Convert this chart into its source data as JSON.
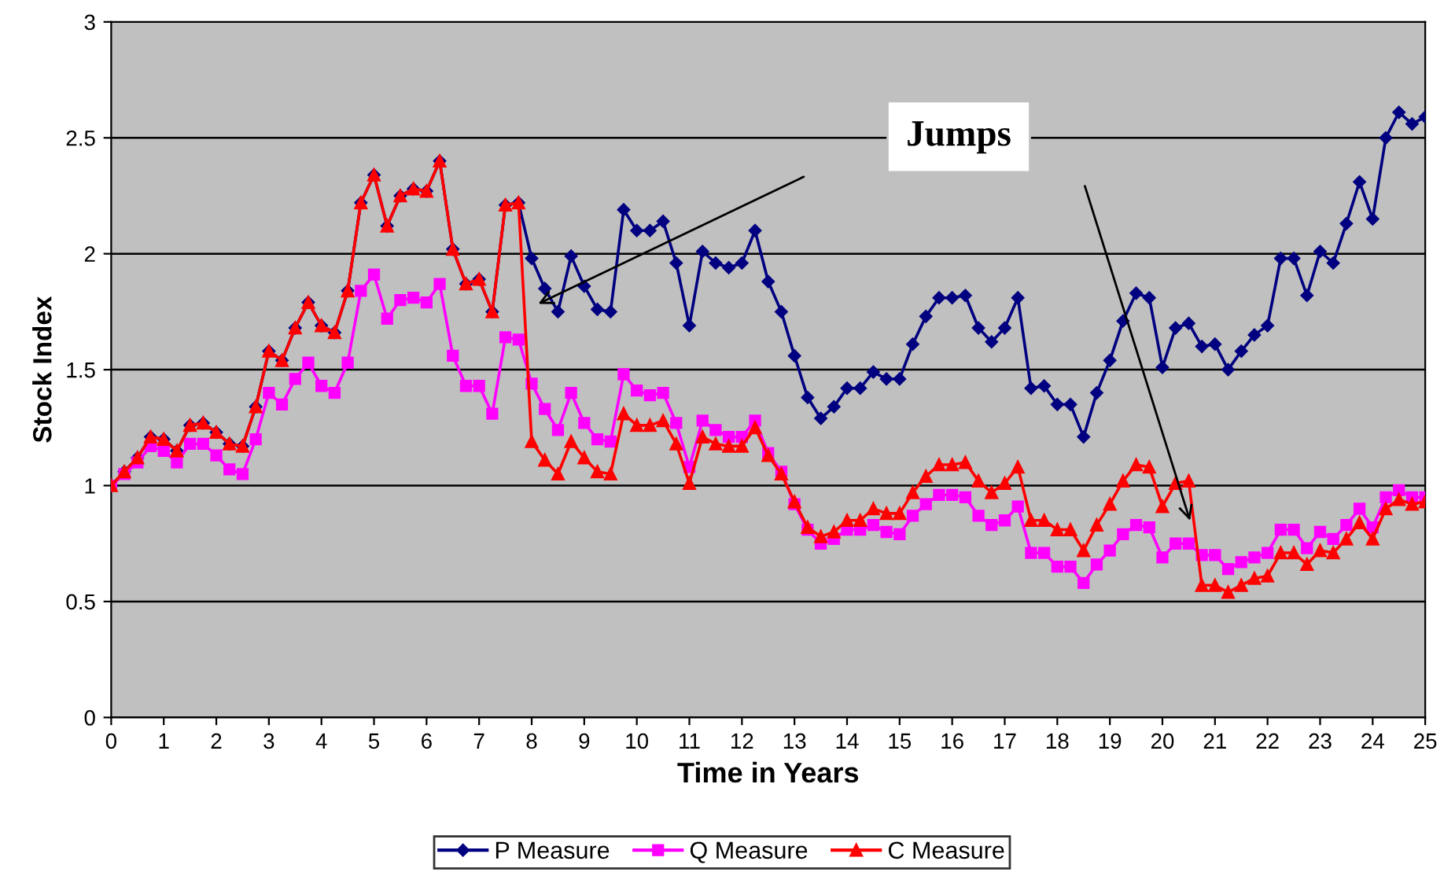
{
  "chart_data": {
    "type": "line",
    "xlabel": "Time in Years",
    "ylabel": "Stock Index",
    "x": [
      0,
      0.25,
      0.5,
      0.75,
      1,
      1.25,
      1.5,
      1.75,
      2,
      2.25,
      2.5,
      2.75,
      3,
      3.25,
      3.5,
      3.75,
      4,
      4.25,
      4.5,
      4.75,
      5,
      5.25,
      5.5,
      5.75,
      6,
      6.25,
      6.5,
      6.75,
      7,
      7.25,
      7.5,
      7.75,
      8,
      8.25,
      8.5,
      8.75,
      9,
      9.25,
      9.5,
      9.75,
      10,
      10.25,
      10.5,
      10.75,
      11,
      11.25,
      11.5,
      11.75,
      12,
      12.25,
      12.5,
      12.75,
      13,
      13.25,
      13.5,
      13.75,
      14,
      14.25,
      14.5,
      14.75,
      15,
      15.25,
      15.5,
      15.75,
      16,
      16.25,
      16.5,
      16.75,
      17,
      17.25,
      17.5,
      17.75,
      18,
      18.25,
      18.5,
      18.75,
      19,
      19.25,
      19.5,
      19.75,
      20,
      20.25,
      20.5,
      20.75,
      21,
      21.25,
      21.5,
      21.75,
      22,
      22.25,
      22.5,
      22.75,
      23,
      23.25,
      23.5,
      23.75,
      24,
      24.25,
      24.5,
      24.75,
      25
    ],
    "series": [
      {
        "name": "P Measure",
        "color": "#000080",
        "marker": "diamond",
        "values": [
          1.0,
          1.06,
          1.12,
          1.21,
          1.2,
          1.15,
          1.26,
          1.27,
          1.23,
          1.18,
          1.17,
          1.34,
          1.58,
          1.54,
          1.68,
          1.79,
          1.69,
          1.66,
          1.84,
          2.22,
          2.34,
          2.12,
          2.25,
          2.28,
          2.27,
          2.4,
          2.02,
          1.87,
          1.89,
          1.75,
          2.21,
          2.22,
          1.98,
          1.85,
          1.75,
          1.99,
          1.86,
          1.76,
          1.75,
          2.19,
          2.1,
          2.1,
          2.14,
          1.96,
          1.69,
          2.01,
          1.96,
          1.94,
          1.96,
          2.1,
          1.88,
          1.75,
          1.56,
          1.38,
          1.29,
          1.34,
          1.42,
          1.42,
          1.49,
          1.46,
          1.46,
          1.61,
          1.73,
          1.81,
          1.81,
          1.82,
          1.68,
          1.62,
          1.68,
          1.81,
          1.42,
          1.43,
          1.35,
          1.35,
          1.21,
          1.4,
          1.54,
          1.71,
          1.83,
          1.81,
          1.51,
          1.68,
          1.7,
          1.6,
          1.61,
          1.5,
          1.58,
          1.65,
          1.69,
          1.98,
          1.98,
          1.82,
          2.01,
          1.96,
          2.13,
          2.31,
          2.15,
          2.5,
          2.61,
          2.56,
          2.59
        ]
      },
      {
        "name": "Q Measure",
        "color": "#ff00ff",
        "marker": "square",
        "values": [
          1.0,
          1.05,
          1.1,
          1.17,
          1.15,
          1.1,
          1.18,
          1.18,
          1.13,
          1.07,
          1.05,
          1.2,
          1.4,
          1.35,
          1.46,
          1.53,
          1.43,
          1.4,
          1.53,
          1.84,
          1.91,
          1.72,
          1.8,
          1.81,
          1.79,
          1.87,
          1.56,
          1.43,
          1.43,
          1.31,
          1.64,
          1.63,
          1.44,
          1.33,
          1.24,
          1.4,
          1.27,
          1.2,
          1.19,
          1.48,
          1.41,
          1.39,
          1.4,
          1.27,
          1.08,
          1.28,
          1.24,
          1.21,
          1.21,
          1.28,
          1.14,
          1.06,
          0.92,
          0.81,
          0.75,
          0.77,
          0.81,
          0.81,
          0.83,
          0.8,
          0.79,
          0.87,
          0.92,
          0.96,
          0.96,
          0.95,
          0.87,
          0.83,
          0.85,
          0.91,
          0.71,
          0.71,
          0.65,
          0.65,
          0.58,
          0.66,
          0.72,
          0.79,
          0.83,
          0.82,
          0.69,
          0.75,
          0.75,
          0.7,
          0.7,
          0.64,
          0.67,
          0.69,
          0.71,
          0.81,
          0.81,
          0.73,
          0.8,
          0.77,
          0.83,
          0.9,
          0.82,
          0.95,
          0.98,
          0.95,
          0.95
        ]
      },
      {
        "name": "C Measure",
        "color": "#ff0000",
        "marker": "triangle",
        "values": [
          1.0,
          1.06,
          1.12,
          1.21,
          1.2,
          1.15,
          1.26,
          1.27,
          1.23,
          1.18,
          1.17,
          1.34,
          1.58,
          1.54,
          1.68,
          1.79,
          1.69,
          1.66,
          1.84,
          2.22,
          2.34,
          2.12,
          2.25,
          2.28,
          2.27,
          2.4,
          2.02,
          1.87,
          1.89,
          1.75,
          2.21,
          2.22,
          1.19,
          1.11,
          1.05,
          1.19,
          1.12,
          1.06,
          1.05,
          1.31,
          1.26,
          1.26,
          1.28,
          1.18,
          1.01,
          1.21,
          1.18,
          1.17,
          1.17,
          1.25,
          1.13,
          1.05,
          0.93,
          0.82,
          0.78,
          0.8,
          0.85,
          0.85,
          0.9,
          0.88,
          0.88,
          0.97,
          1.04,
          1.09,
          1.09,
          1.1,
          1.02,
          0.97,
          1.01,
          1.08,
          0.85,
          0.85,
          0.81,
          0.81,
          0.72,
          0.83,
          0.92,
          1.02,
          1.09,
          1.08,
          0.91,
          1.01,
          1.02,
          0.57,
          0.57,
          0.54,
          0.57,
          0.6,
          0.61,
          0.71,
          0.71,
          0.66,
          0.72,
          0.71,
          0.77,
          0.84,
          0.77,
          0.9,
          0.94,
          0.92,
          0.93
        ]
      }
    ],
    "xlim": [
      0,
      25
    ],
    "xticks": [
      0,
      1,
      2,
      3,
      4,
      5,
      6,
      7,
      8,
      9,
      10,
      11,
      12,
      13,
      14,
      15,
      16,
      17,
      18,
      19,
      20,
      21,
      22,
      23,
      24,
      25
    ],
    "ylim": [
      0,
      3
    ],
    "yticks": [
      0,
      0.5,
      1,
      1.5,
      2,
      2.5,
      3
    ],
    "grid": "y",
    "legend": "bottom",
    "line_style": "solid",
    "annotations": [
      "Jumps"
    ]
  }
}
